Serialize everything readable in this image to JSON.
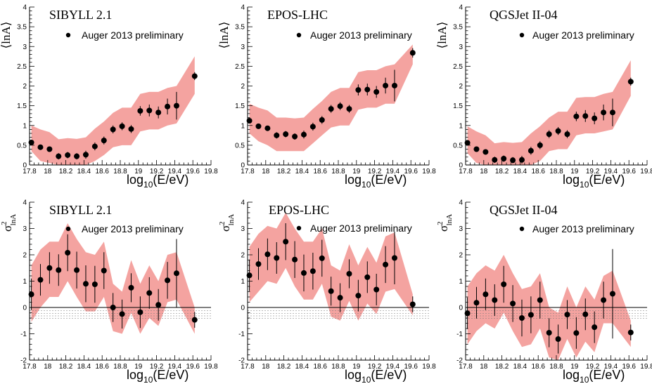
{
  "colors": {
    "band": "#f4a3a0",
    "band_alt": "#f9b8b3",
    "marker": "#000000",
    "axis": "#000000"
  },
  "chart_data": [
    {
      "id": "lnA-sibyll",
      "type": "scatter",
      "title": "SIBYLL 2.1",
      "legend": "Auger 2013 preliminary",
      "xlabel_main": "log",
      "xlabel_sub": "10",
      "xlabel_rest": "(E/eV)",
      "ylabel": "⟨lnA⟩",
      "xlim": [
        17.8,
        19.8
      ],
      "ylim": [
        0,
        4
      ],
      "xticks": [
        "17.8",
        "18",
        "18.2",
        "18.4",
        "18.6",
        "18.8",
        "19",
        "19.2",
        "19.4",
        "19.6",
        "19.8"
      ],
      "yticks": [
        "0",
        "0.5",
        "1",
        "1.5",
        "2",
        "2.5",
        "3",
        "3.5",
        "4"
      ],
      "x": [
        17.82,
        17.92,
        18.02,
        18.12,
        18.22,
        18.32,
        18.42,
        18.52,
        18.62,
        18.72,
        18.82,
        18.92,
        19.02,
        19.12,
        19.22,
        19.32,
        19.42,
        19.62
      ],
      "y": [
        0.57,
        0.45,
        0.4,
        0.22,
        0.25,
        0.22,
        0.26,
        0.47,
        0.62,
        0.9,
        0.98,
        0.91,
        1.37,
        1.38,
        1.33,
        1.48,
        1.5,
        2.25
      ],
      "yerr": [
        0.05,
        0.05,
        0.05,
        0.08,
        0.08,
        0.08,
        0.1,
        0.1,
        0.1,
        0.1,
        0.1,
        0.1,
        0.12,
        0.15,
        0.15,
        0.2,
        0.35,
        0.1
      ],
      "band_upper": [
        1.0,
        0.9,
        0.83,
        0.65,
        0.68,
        0.66,
        0.7,
        0.92,
        1.1,
        1.32,
        1.45,
        1.45,
        1.8,
        1.85,
        1.85,
        1.95,
        2.0,
        2.75
      ],
      "band_lower": [
        0.35,
        0.1,
        0.05,
        0.0,
        0.0,
        0.0,
        0.0,
        0.1,
        0.25,
        0.45,
        0.5,
        0.5,
        0.85,
        0.9,
        0.9,
        1.0,
        1.05,
        1.8
      ],
      "zero_line": false
    },
    {
      "id": "lnA-epos",
      "type": "scatter",
      "title": "EPOS-LHC",
      "legend": "Auger 2013 preliminary",
      "xlabel_main": "log",
      "xlabel_sub": "10",
      "xlabel_rest": "(E/eV)",
      "ylabel": "⟨lnA⟩",
      "xlim": [
        17.8,
        19.8
      ],
      "ylim": [
        0,
        4
      ],
      "xticks": [
        "17.8",
        "18",
        "18.2",
        "18.4",
        "18.6",
        "18.8",
        "19",
        "19.2",
        "19.4",
        "19.6",
        "19.8"
      ],
      "yticks": [
        "0",
        "0.5",
        "1",
        "1.5",
        "2",
        "2.5",
        "3",
        "3.5",
        "4"
      ],
      "x": [
        17.82,
        17.92,
        18.02,
        18.12,
        18.22,
        18.32,
        18.42,
        18.52,
        18.62,
        18.72,
        18.82,
        18.92,
        19.02,
        19.12,
        19.22,
        19.32,
        19.42,
        19.62
      ],
      "y": [
        1.12,
        0.98,
        0.93,
        0.75,
        0.78,
        0.72,
        0.77,
        0.97,
        1.14,
        1.42,
        1.49,
        1.42,
        1.9,
        1.91,
        1.85,
        2.01,
        2.01,
        2.84
      ],
      "yerr": [
        0.06,
        0.06,
        0.06,
        0.08,
        0.08,
        0.08,
        0.1,
        0.1,
        0.1,
        0.1,
        0.1,
        0.1,
        0.14,
        0.15,
        0.15,
        0.2,
        0.4,
        0.12
      ],
      "band_upper": [
        1.55,
        1.45,
        1.38,
        1.2,
        1.2,
        1.18,
        1.2,
        1.42,
        1.62,
        1.85,
        1.95,
        1.95,
        2.35,
        2.4,
        2.4,
        2.5,
        2.55,
        3.05
      ],
      "band_lower": [
        0.8,
        0.6,
        0.5,
        0.35,
        0.35,
        0.35,
        0.35,
        0.55,
        0.75,
        0.95,
        1.0,
        1.0,
        1.4,
        1.45,
        1.45,
        1.55,
        1.55,
        2.55
      ],
      "zero_line": false
    },
    {
      "id": "lnA-qgsjet",
      "type": "scatter",
      "title": "QGSJet II-04",
      "legend": "Auger 2013 preliminary",
      "xlabel_main": "log",
      "xlabel_sub": "10",
      "xlabel_rest": "(E/eV)",
      "ylabel": "⟨lnA⟩",
      "xlim": [
        17.8,
        19.8
      ],
      "ylim": [
        0,
        4
      ],
      "xticks": [
        "17.8",
        "18",
        "18.2",
        "18.4",
        "18.6",
        "18.8",
        "19",
        "19.2",
        "19.4",
        "19.6",
        "19.8"
      ],
      "yticks": [
        "0",
        "0.5",
        "1",
        "1.5",
        "2",
        "2.5",
        "3",
        "3.5",
        "4"
      ],
      "x": [
        17.82,
        17.92,
        18.02,
        18.12,
        18.22,
        18.32,
        18.42,
        18.52,
        18.62,
        18.72,
        18.82,
        18.92,
        19.02,
        19.12,
        19.22,
        19.32,
        19.42,
        19.62
      ],
      "y": [
        0.56,
        0.4,
        0.33,
        0.13,
        0.16,
        0.12,
        0.13,
        0.36,
        0.5,
        0.78,
        0.86,
        0.78,
        1.23,
        1.24,
        1.18,
        1.33,
        1.33,
        2.11
      ],
      "yerr": [
        0.05,
        0.05,
        0.05,
        0.08,
        0.08,
        0.08,
        0.1,
        0.1,
        0.1,
        0.1,
        0.1,
        0.1,
        0.12,
        0.15,
        0.15,
        0.2,
        0.35,
        0.1
      ],
      "band_upper": [
        0.98,
        0.85,
        0.75,
        0.55,
        0.58,
        0.56,
        0.58,
        0.8,
        0.98,
        1.2,
        1.35,
        1.35,
        1.7,
        1.72,
        1.72,
        1.8,
        1.85,
        2.65
      ],
      "band_lower": [
        0.3,
        0.05,
        0.0,
        0.0,
        0.0,
        0.0,
        0.0,
        0.0,
        0.1,
        0.35,
        0.4,
        0.4,
        0.75,
        0.8,
        0.8,
        0.85,
        0.9,
        1.75
      ],
      "zero_line": false
    },
    {
      "id": "var-sibyll",
      "type": "scatter",
      "title": "SIBYLL 2.1",
      "legend": "Auger 2013 preliminary",
      "xlabel_main": "log",
      "xlabel_sub": "10",
      "xlabel_rest": "(E/eV)",
      "ylabel": "σ",
      "ylabel_sup": "2",
      "ylabel_sub": "lnA",
      "xlim": [
        17.8,
        19.8
      ],
      "ylim": [
        -2,
        4
      ],
      "xticks": [
        "17.8",
        "18",
        "18.2",
        "18.4",
        "18.6",
        "18.8",
        "19",
        "19.2",
        "19.4",
        "19.6",
        "19.8"
      ],
      "yticks": [
        "-2",
        "-1",
        "0",
        "1",
        "2",
        "3",
        "4"
      ],
      "x": [
        17.82,
        17.92,
        18.02,
        18.12,
        18.22,
        18.32,
        18.42,
        18.52,
        18.62,
        18.72,
        18.82,
        18.92,
        19.02,
        19.12,
        19.22,
        19.32,
        19.42,
        19.62
      ],
      "y": [
        0.5,
        1.05,
        1.5,
        1.42,
        2.08,
        1.42,
        0.9,
        0.88,
        1.4,
        0.0,
        -0.25,
        0.75,
        -0.18,
        0.55,
        0.1,
        1.03,
        1.3,
        -0.47
      ],
      "yerr": [
        0.6,
        0.6,
        0.6,
        0.6,
        0.7,
        0.7,
        0.7,
        0.7,
        0.7,
        0.55,
        0.55,
        0.55,
        0.6,
        0.6,
        0.6,
        0.7,
        1.3,
        0.3
      ],
      "band_upper": [
        1.6,
        2.2,
        2.5,
        2.5,
        3.2,
        2.6,
        2.1,
        2.0,
        2.5,
        0.9,
        0.6,
        1.8,
        0.9,
        1.6,
        1.0,
        2.0,
        2.1,
        0.0
      ],
      "band_lower": [
        -0.55,
        0.0,
        0.4,
        0.4,
        1.0,
        0.4,
        -0.15,
        -0.15,
        0.4,
        -0.9,
        -1.0,
        -0.2,
        -1.0,
        -0.4,
        -0.7,
        0.2,
        0.3,
        -1.0
      ],
      "zero_line": true
    },
    {
      "id": "var-epos",
      "type": "scatter",
      "title": "EPOS-LHC",
      "legend": "Auger 2013 preliminary",
      "xlabel_main": "log",
      "xlabel_sub": "10",
      "xlabel_rest": "(E/eV)",
      "ylabel": "σ",
      "ylabel_sup": "2",
      "ylabel_sub": "lnA",
      "xlim": [
        17.8,
        19.8
      ],
      "ylim": [
        -2,
        4
      ],
      "xticks": [
        "17.8",
        "18",
        "18.2",
        "18.4",
        "18.6",
        "18.8",
        "19",
        "19.2",
        "19.4",
        "19.6",
        "19.8"
      ],
      "yticks": [
        "-2",
        "-1",
        "0",
        "1",
        "2",
        "3",
        "4"
      ],
      "x": [
        17.82,
        17.92,
        18.02,
        18.12,
        18.22,
        18.32,
        18.42,
        18.52,
        18.62,
        18.72,
        18.82,
        18.92,
        19.02,
        19.12,
        19.22,
        19.32,
        19.42,
        19.62
      ],
      "y": [
        1.22,
        1.65,
        2.02,
        1.88,
        2.5,
        1.82,
        1.31,
        1.38,
        1.87,
        0.62,
        0.37,
        1.28,
        0.45,
        1.15,
        0.68,
        1.63,
        1.88,
        0.12
      ],
      "yerr": [
        0.6,
        0.6,
        0.6,
        0.6,
        0.7,
        0.7,
        0.7,
        0.7,
        0.7,
        0.55,
        0.55,
        0.55,
        0.6,
        0.6,
        0.6,
        0.7,
        1.0,
        0.3
      ],
      "band_upper": [
        2.3,
        2.8,
        3.1,
        3.0,
        3.6,
        3.0,
        2.5,
        2.5,
        3.0,
        1.6,
        1.4,
        2.4,
        1.6,
        2.3,
        1.7,
        2.7,
        2.85,
        0.5
      ],
      "band_lower": [
        0.2,
        0.6,
        1.0,
        0.9,
        1.5,
        0.8,
        0.3,
        0.3,
        0.9,
        -0.35,
        -0.5,
        0.25,
        -0.5,
        0.15,
        -0.25,
        0.6,
        0.7,
        -0.3
      ],
      "zero_line": true
    },
    {
      "id": "var-qgsjet",
      "type": "scatter",
      "title": "QGSJet II-04",
      "legend": "Auger 2013 preliminary",
      "xlabel_main": "log",
      "xlabel_sub": "10",
      "xlabel_rest": "(E/eV)",
      "ylabel": "σ",
      "ylabel_sup": "2",
      "ylabel_sub": "lnA",
      "xlim": [
        17.8,
        19.8
      ],
      "ylim": [
        -2,
        4
      ],
      "xticks": [
        "17.8",
        "18",
        "18.2",
        "18.4",
        "18.6",
        "18.8",
        "19",
        "19.2",
        "19.4",
        "19.6",
        "19.8"
      ],
      "yticks": [
        "-2",
        "-1",
        "0",
        "1",
        "2",
        "3",
        "4"
      ],
      "x": [
        17.82,
        17.92,
        18.02,
        18.12,
        18.22,
        18.32,
        18.42,
        18.52,
        18.62,
        18.72,
        18.82,
        18.92,
        19.02,
        19.12,
        19.22,
        19.32,
        19.42,
        19.62
      ],
      "y": [
        -0.22,
        0.18,
        0.5,
        0.28,
        0.88,
        0.15,
        -0.4,
        -0.28,
        0.28,
        -0.96,
        -1.2,
        -0.27,
        -0.97,
        -0.26,
        -0.75,
        0.28,
        0.52,
        -0.95
      ],
      "yerr": [
        0.6,
        0.6,
        0.6,
        0.6,
        0.7,
        0.7,
        0.7,
        0.7,
        0.7,
        0.55,
        0.55,
        0.55,
        0.6,
        0.6,
        0.6,
        0.7,
        1.7,
        0.3
      ],
      "band_upper": [
        0.8,
        1.3,
        1.6,
        1.4,
        2.0,
        1.3,
        0.7,
        0.8,
        1.3,
        0.0,
        -0.2,
        0.8,
        0.0,
        0.8,
        0.3,
        1.2,
        1.4,
        -0.5
      ],
      "band_lower": [
        -1.4,
        -0.9,
        -0.6,
        -0.8,
        -0.2,
        -0.9,
        -1.5,
        -1.4,
        -0.8,
        -1.9,
        -2.0,
        -1.2,
        -1.9,
        -1.3,
        -1.7,
        -0.6,
        -0.6,
        -1.5
      ],
      "zero_line": true
    }
  ]
}
